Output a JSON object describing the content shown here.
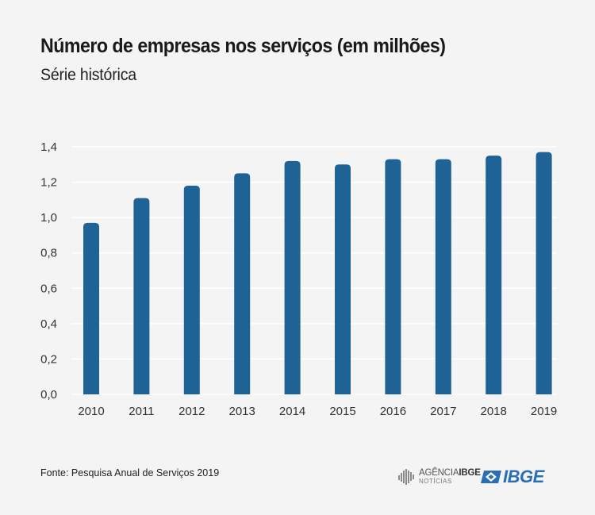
{
  "chart_data": {
    "type": "bar",
    "title": "Número de empresas nos serviços (em milhões)",
    "subtitle": "Série histórica",
    "categories": [
      "2010",
      "2011",
      "2012",
      "2013",
      "2014",
      "2015",
      "2016",
      "2017",
      "2018",
      "2019"
    ],
    "values": [
      0.97,
      1.11,
      1.18,
      1.25,
      1.32,
      1.3,
      1.33,
      1.33,
      1.35,
      1.37
    ],
    "y_ticks": [
      "0,0",
      "0,2",
      "0,4",
      "0,6",
      "0,8",
      "1,0",
      "1,2",
      "1,4"
    ],
    "ylim": [
      0,
      1.4
    ],
    "xlabel": "",
    "ylabel": "",
    "grid": true,
    "bar_color": "#1f6396"
  },
  "footer": {
    "source": "Fonte: Pesquisa Anual de Serviços 2019",
    "agencia_line1": "AGÊNCIA",
    "agencia_line1_bold": "IBGE",
    "agencia_line2": "NOTÍCIAS",
    "ibge_logo": "IBGE"
  },
  "colors": {
    "background": "#f5f4f4",
    "grid": "#ffffff",
    "ibge_blue": "#2a6fb6"
  }
}
